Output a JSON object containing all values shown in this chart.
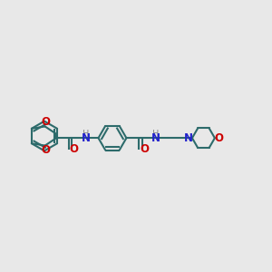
{
  "bg_color": "#e8e8e8",
  "bond_color": "#2d6b6b",
  "o_color": "#cc0000",
  "n_color": "#2222cc",
  "h_color": "#888888",
  "line_width": 1.5,
  "font_size": 8.5,
  "xlim": [
    0,
    10
  ],
  "ylim": [
    2,
    8
  ]
}
